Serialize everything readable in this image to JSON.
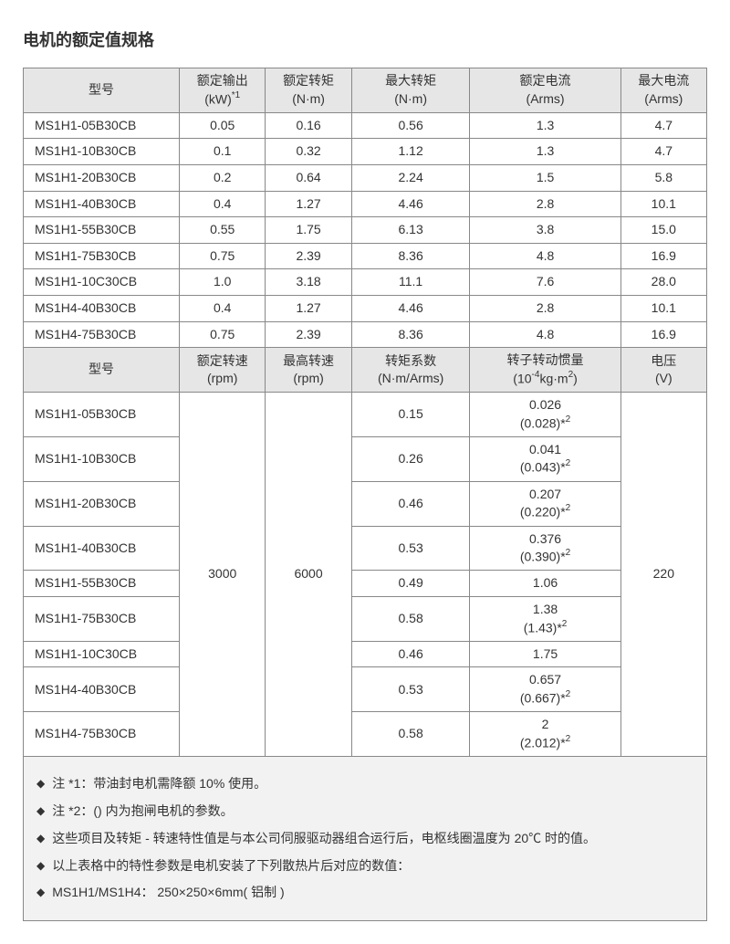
{
  "title": "电机的额定值规格",
  "headers1": {
    "model": "型号",
    "c1_l1": "额定输出",
    "c1_l2": "(kW)",
    "c1_sup": "*1",
    "c2_l1": "额定转矩",
    "c2_l2": "(N·m)",
    "c3_l1": "最大转矩",
    "c3_l2": "(N·m)",
    "c4_l1": "额定电流",
    "c4_l2": "(Arms)",
    "c5_l1": "最大电流",
    "c5_l2": "(Arms)"
  },
  "rows1": [
    {
      "m": "MS1H1-05B30CB",
      "v": [
        "0.05",
        "0.16",
        "0.56",
        "1.3",
        "4.7"
      ]
    },
    {
      "m": "MS1H1-10B30CB",
      "v": [
        "0.1",
        "0.32",
        "1.12",
        "1.3",
        "4.7"
      ]
    },
    {
      "m": "MS1H1-20B30CB",
      "v": [
        "0.2",
        "0.64",
        "2.24",
        "1.5",
        "5.8"
      ]
    },
    {
      "m": "MS1H1-40B30CB",
      "v": [
        "0.4",
        "1.27",
        "4.46",
        "2.8",
        "10.1"
      ]
    },
    {
      "m": "MS1H1-55B30CB",
      "v": [
        "0.55",
        "1.75",
        "6.13",
        "3.8",
        "15.0"
      ]
    },
    {
      "m": "MS1H1-75B30CB",
      "v": [
        "0.75",
        "2.39",
        "8.36",
        "4.8",
        "16.9"
      ]
    },
    {
      "m": "MS1H1-10C30CB",
      "v": [
        "1.0",
        "3.18",
        "11.1",
        "7.6",
        "28.0"
      ]
    },
    {
      "m": "MS1H4-40B30CB",
      "v": [
        "0.4",
        "1.27",
        "4.46",
        "2.8",
        "10.1"
      ]
    },
    {
      "m": "MS1H4-75B30CB",
      "v": [
        "0.75",
        "2.39",
        "8.36",
        "4.8",
        "16.9"
      ]
    }
  ],
  "headers2": {
    "model": "型号",
    "c1_l1": "额定转速",
    "c1_l2": "(rpm)",
    "c2_l1": "最高转速",
    "c2_l2": "(rpm)",
    "c3_l1": "转矩系数",
    "c3_l2": "(N·m/Arms)",
    "c4_l1": "转子转动惯量",
    "c4_l2a": "(10",
    "c4_sup": "-4",
    "c4_l2b": "kg·m",
    "c4_sup2": "2",
    "c4_l2c": ")",
    "c5_l1": "电压",
    "c5_l2": "(V)"
  },
  "merged": {
    "rated_speed": "3000",
    "max_speed": "6000",
    "voltage": "220"
  },
  "rows2": [
    {
      "m": "MS1H1-05B30CB",
      "tc": "0.15",
      "in_l1": "0.026",
      "in_l2": "(0.028)*",
      "in_sup": "2"
    },
    {
      "m": "MS1H1-10B30CB",
      "tc": "0.26",
      "in_l1": "0.041",
      "in_l2": "(0.043)*",
      "in_sup": "2"
    },
    {
      "m": "MS1H1-20B30CB",
      "tc": "0.46",
      "in_l1": "0.207",
      "in_l2": "(0.220)*",
      "in_sup": "2"
    },
    {
      "m": "MS1H1-40B30CB",
      "tc": "0.53",
      "in_l1": "0.376",
      "in_l2": "(0.390)*",
      "in_sup": "2"
    },
    {
      "m": "MS1H1-55B30CB",
      "tc": "0.49",
      "in_l1": "1.06",
      "in_l2": "",
      "in_sup": ""
    },
    {
      "m": "MS1H1-75B30CB",
      "tc": "0.58",
      "in_l1": "1.38",
      "in_l2": "(1.43)*",
      "in_sup": "2"
    },
    {
      "m": "MS1H1-10C30CB",
      "tc": "0.46",
      "in_l1": "1.75",
      "in_l2": "",
      "in_sup": ""
    },
    {
      "m": "MS1H4-40B30CB",
      "tc": "0.53",
      "in_l1": "0.657",
      "in_l2": "(0.667)*",
      "in_sup": "2"
    },
    {
      "m": "MS1H4-75B30CB",
      "tc": "0.58",
      "in_l1": "2",
      "in_l2": "(2.012)*",
      "in_sup": "2"
    }
  ],
  "notes": [
    "注 *1：带油封电机需降额 10% 使用。",
    "注 *2：() 内为抱闸电机的参数。",
    "这些项目及转矩 - 转速特性值是与本公司伺服驱动器组合运行后，电枢线圈温度为 20℃ 时的值。",
    "以上表格中的特性参数是电机安装了下列散热片后对应的数值：",
    "MS1H1/MS1H4： 250×250×6mm( 铝制 )"
  ]
}
